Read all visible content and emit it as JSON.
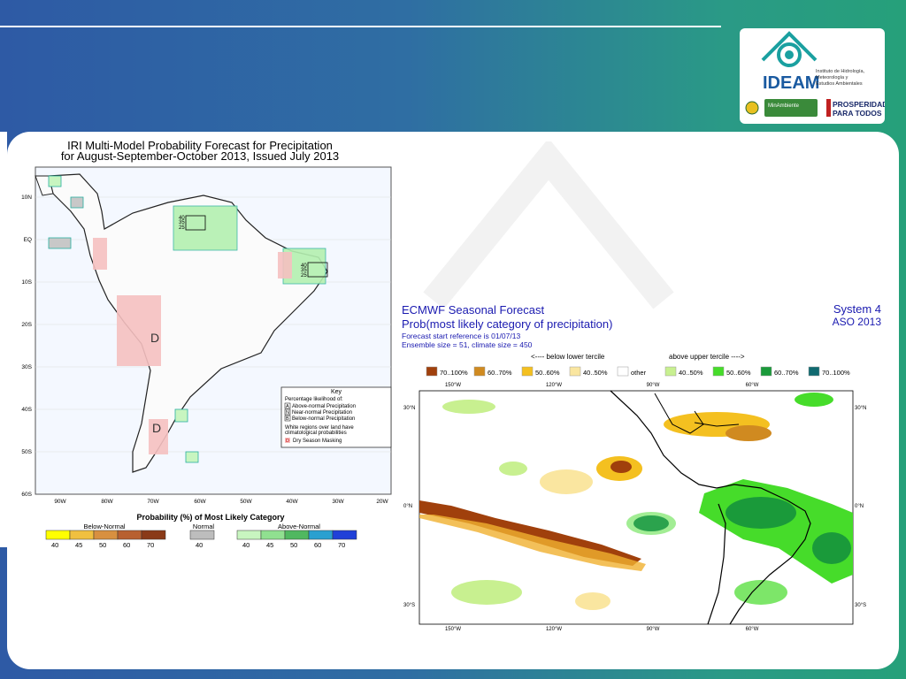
{
  "slide": {
    "accent": "#26a07a",
    "bg_start": "#2e5aa5"
  },
  "logo": {
    "name": "IDEAM",
    "subtitle_lines": [
      "Instituto de Hidrología,",
      "Meteorología y",
      "Estudios Ambientales"
    ],
    "ministry": "MinAmbiente",
    "program_lines": [
      "PROSPERIDAD",
      "PARA TODOS"
    ]
  },
  "iri": {
    "title_line1": "IRI Multi-Model Probability Forecast for Precipitation",
    "title_line2": "for August-September-October 2013, Issued July 2013",
    "lat_labels": [
      "10N",
      "EQ",
      "10S",
      "20S",
      "30S",
      "40S",
      "50S",
      "60S"
    ],
    "lon_labels": [
      "90W",
      "80W",
      "70W",
      "60W",
      "50W",
      "40W",
      "30W",
      "20W"
    ],
    "dry_mark": "D",
    "stack_labels": [
      "40",
      "35",
      "25"
    ],
    "key": {
      "title": "Key",
      "subtitle": "Percentage likelihood of:",
      "rows": [
        {
          "letter": "A",
          "text": "Above-normal Precipitation"
        },
        {
          "letter": "N",
          "text": "Near-normal Precipitation"
        },
        {
          "letter": "B",
          "text": "Below-normal Precipitation"
        }
      ],
      "note1": "White regions over land have",
      "note2": "climatological probabilities",
      "dry_letter": "D",
      "dry_text": "Dry Season Masking"
    },
    "legend": {
      "title": "Probability (%) of Most Likely Category",
      "below_label": "Below-Normal",
      "normal_label": "Normal",
      "above_label": "Above-Normal",
      "below_ticks": [
        "40",
        "45",
        "50",
        "60",
        "70"
      ],
      "normal_ticks": [
        "40"
      ],
      "above_ticks": [
        "40",
        "45",
        "50",
        "60",
        "70"
      ],
      "below_colors": [
        "#ffff00",
        "#f0c040",
        "#d89040",
        "#b86030",
        "#8a3a18"
      ],
      "normal_color": "#bdbdbd",
      "above_colors": [
        "#c8f5c0",
        "#90e090",
        "#50b860",
        "#2aa0d0",
        "#2040d8"
      ]
    }
  },
  "ecmwf": {
    "title": "ECMWF Seasonal Forecast",
    "subtitle": "Prob(most likely category of precipitation)",
    "system": "System 4",
    "season": "ASO 2013",
    "line3": "Forecast start reference is 01/07/13",
    "line4": "Ensemble size = 51, climate size = 450",
    "below_arrow": "<---- below lower tercile",
    "above_arrow": "above upper tercile ---->",
    "legend_items": [
      {
        "label": "70..100%",
        "color": "#a0400c"
      },
      {
        "label": "60..70%",
        "color": "#d08a20"
      },
      {
        "label": "50..60%",
        "color": "#f4c020"
      },
      {
        "label": "40..50%",
        "color": "#fae6a0"
      },
      {
        "label": "other",
        "color": "#ffffff"
      },
      {
        "label": "40..50%",
        "color": "#c8f090"
      },
      {
        "label": "50..60%",
        "color": "#46dc2a"
      },
      {
        "label": "60..70%",
        "color": "#1a9a3a"
      },
      {
        "label": "70..100%",
        "color": "#106a70"
      }
    ],
    "lon_labels": [
      "150°W",
      "120°W",
      "90°W",
      "60°W"
    ],
    "lat_labels_left": [
      "30°N",
      "0°N",
      "30°S"
    ],
    "lat_labels_right": [
      "30°N",
      "0°N",
      "30°S"
    ]
  }
}
